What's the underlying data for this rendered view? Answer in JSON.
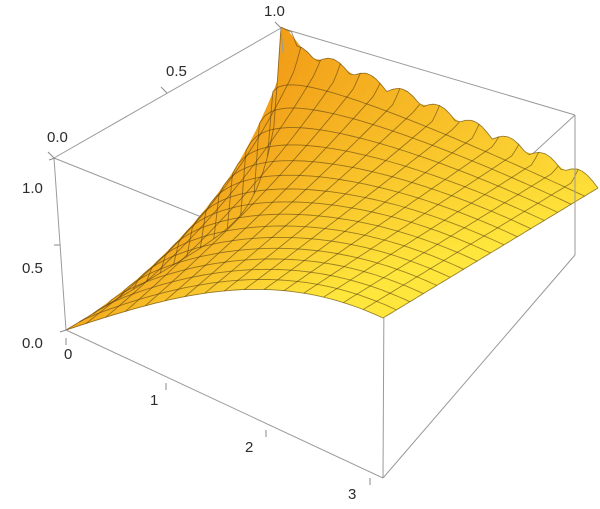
{
  "chart_data": {
    "type": "surface3d",
    "title": "",
    "xlabel": "",
    "ylabel": "",
    "zlabel": "",
    "x_ticks": [
      "0",
      "1",
      "2",
      "3"
    ],
    "y_ticks": [
      "0.0",
      "0.5",
      "1.0"
    ],
    "z_ticks": [
      "0.0",
      "0.5",
      "1.0"
    ],
    "xlim": [
      0,
      3.14159
    ],
    "ylim": [
      0,
      1
    ],
    "zlim": [
      0,
      1.1
    ],
    "mesh": {
      "x_lines": 16,
      "y_lines": 16
    },
    "surface_description_values": {
      "function_approximation": "z = sin(x/2) ^ (1 - y) (approx, ringing near y = 1)",
      "samples": [
        {
          "x": 0.0,
          "y": 0.0,
          "z": 0.0
        },
        {
          "x": 1.57,
          "y": 0.0,
          "z": 0.71
        },
        {
          "x": 3.14,
          "y": 0.0,
          "z": 1.0
        },
        {
          "x": 0.0,
          "y": 0.5,
          "z": 0.0
        },
        {
          "x": 1.57,
          "y": 0.5,
          "z": 0.84
        },
        {
          "x": 3.14,
          "y": 0.5,
          "z": 1.0
        },
        {
          "x": 0.0,
          "y": 1.0,
          "z": 1.0
        },
        {
          "x": 1.57,
          "y": 1.0,
          "z": 1.0
        },
        {
          "x": 3.14,
          "y": 1.0,
          "z": 1.0
        }
      ]
    },
    "colors": {
      "surface_light": "#ffe23a",
      "surface_mid": "#f7a523",
      "surface_dark": "#c96b08",
      "mesh": "#4a3410",
      "box": "#9a9a9a"
    }
  }
}
